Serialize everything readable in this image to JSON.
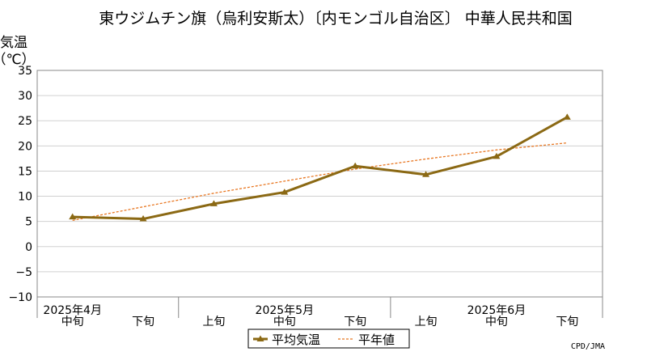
{
  "colors": {
    "average": "#8B6914",
    "normal": "#E87722",
    "grid": "#d0d0d0",
    "axis": "#888888"
  },
  "chart_data": {
    "type": "line",
    "title": "東ウジムチン旗（烏利安斯太）〔内モンゴル自治区〕 中華人民共和国",
    "ylabel_line1": "気温",
    "ylabel_line2": "（℃）",
    "ylim": [
      -10,
      35
    ],
    "yticks": [
      "35",
      "30",
      "25",
      "20",
      "15",
      "10",
      "5",
      "0",
      "−5",
      "−10"
    ],
    "categories": [
      "中旬",
      "下旬",
      "上旬",
      "中旬",
      "下旬",
      "上旬",
      "中旬",
      "下旬"
    ],
    "month_labels": [
      {
        "label": "2025年4月",
        "index": 0
      },
      {
        "label": "2025年5月",
        "index": 3
      },
      {
        "label": "2025年6月",
        "index": 6
      }
    ],
    "series": [
      {
        "name": "平均気温",
        "style": "solid-triangle",
        "values": [
          5.9,
          5.5,
          8.5,
          10.8,
          16.0,
          14.3,
          17.9,
          25.7
        ]
      },
      {
        "name": "平年値",
        "style": "dashed",
        "values": [
          5.2,
          7.9,
          10.6,
          13.0,
          15.4,
          17.4,
          19.2,
          20.6
        ]
      }
    ],
    "grid": true,
    "legend": "bottom-center",
    "credit": "CPD/JMA"
  }
}
